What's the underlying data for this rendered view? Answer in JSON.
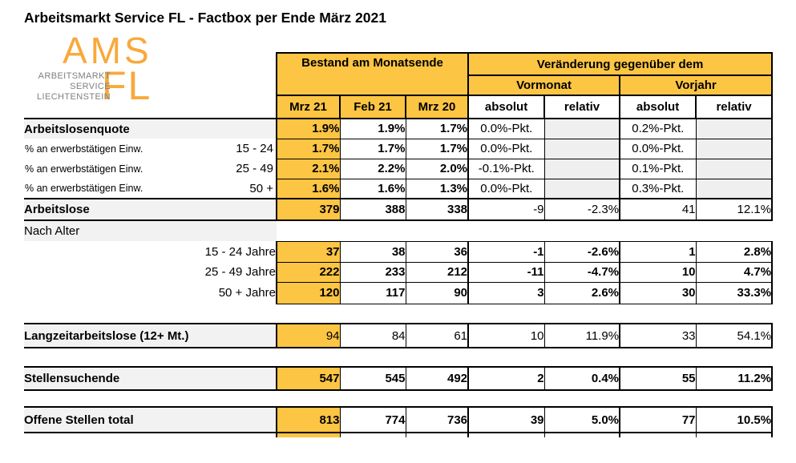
{
  "title": "Arbeitsmarkt Service FL - Factbox per Ende März 2021",
  "logo": {
    "acronym": "AMS",
    "suffix": "FL",
    "lines": [
      "ARBEITSMARKT",
      "SERVICE",
      "LIECHTENSTEIN"
    ]
  },
  "header": {
    "bestand": "Bestand am Monatsende",
    "veraenderung": "Veränderung gegenüber dem",
    "vormonat": "Vormonat",
    "vorjahr": "Vorjahr",
    "months": [
      "Mrz 21",
      "Feb 21",
      "Mrz 20"
    ],
    "vormonat_cols": [
      "absolut",
      "relativ"
    ],
    "vorjahr_cols": [
      "absolut",
      "relativ"
    ]
  },
  "colors": {
    "cell_orange": "#FDC544",
    "logo_orange": "#F8A93C",
    "label_gray": "#F2F2F2",
    "shade_gray": "#EFEFEF",
    "border_black": "#000000",
    "logo_text_gray": "#7F7F7F"
  },
  "rows": [
    {
      "id": "arbeitslosenquote",
      "kind": "quote",
      "label": "Arbeitslosenquote",
      "bestand": [
        "1.9%",
        "1.9%",
        "1.7%"
      ],
      "vormonat_absolut": "0.0%-Pkt.",
      "vorjahr_absolut": "0.2%-Pkt."
    },
    {
      "id": "quote-15-24",
      "kind": "quote",
      "label_left": "% an erwerbstätigen Einw.",
      "label_right": "15 - 24",
      "bestand": [
        "1.7%",
        "1.7%",
        "1.7%"
      ],
      "vormonat_absolut": "0.0%-Pkt.",
      "vorjahr_absolut": "0.0%-Pkt."
    },
    {
      "id": "quote-25-49",
      "kind": "quote",
      "label_left": "% an erwerbstätigen Einw.",
      "label_right": "25 - 49",
      "bestand": [
        "2.1%",
        "2.2%",
        "2.0%"
      ],
      "vormonat_absolut": "-0.1%-Pkt.",
      "vorjahr_absolut": "0.1%-Pkt."
    },
    {
      "id": "quote-50plus",
      "kind": "quote",
      "label_left": "% an erwerbstätigen Einw.",
      "label_right": "50 +",
      "bestand": [
        "1.6%",
        "1.6%",
        "1.3%"
      ],
      "vormonat_absolut": "0.0%-Pkt.",
      "vorjahr_absolut": "0.3%-Pkt."
    },
    {
      "id": "arbeitslose",
      "kind": "total",
      "label": "Arbeitslose",
      "bestand": [
        "379",
        "388",
        "338"
      ],
      "changes": [
        "-9",
        "-2.3%",
        "41",
        "12.1%"
      ],
      "bestand_bold": true,
      "changes_bold": false
    },
    {
      "id": "nach-alter",
      "kind": "subhead",
      "label": "Nach Alter"
    },
    {
      "id": "age-15-24",
      "kind": "age",
      "label": "15 - 24 Jahre",
      "bestand": [
        "37",
        "38",
        "36"
      ],
      "changes": [
        "-1",
        "-2.6%",
        "1",
        "2.8%"
      ],
      "bestand_bold": true,
      "changes_bold": true
    },
    {
      "id": "age-25-49",
      "kind": "age",
      "label": "25 - 49 Jahre",
      "bestand": [
        "222",
        "233",
        "212"
      ],
      "changes": [
        "-11",
        "-4.7%",
        "10",
        "4.7%"
      ],
      "bestand_bold": true,
      "changes_bold": true
    },
    {
      "id": "age-50plus",
      "kind": "age",
      "label": "50 + Jahre",
      "bestand": [
        "120",
        "117",
        "90"
      ],
      "changes": [
        "3",
        "2.6%",
        "30",
        "33.3%"
      ],
      "bestand_bold": true,
      "changes_bold": true
    },
    {
      "id": "langzeitarbeitslose",
      "kind": "total",
      "label": "Langzeitarbeitslose (12+ Mt.)",
      "bestand": [
        "94",
        "84",
        "61"
      ],
      "changes": [
        "10",
        "11.9%",
        "33",
        "54.1%"
      ],
      "bestand_bold": false,
      "changes_bold": false
    },
    {
      "id": "stellensuchende",
      "kind": "total",
      "label": "Stellensuchende",
      "bestand": [
        "547",
        "545",
        "492"
      ],
      "changes": [
        "2",
        "0.4%",
        "55",
        "11.2%"
      ],
      "bestand_bold": true,
      "changes_bold": true
    },
    {
      "id": "offene-stellen",
      "kind": "total",
      "label": "Offene Stellen total",
      "bestand": [
        "813",
        "774",
        "736"
      ],
      "changes": [
        "39",
        "5.0%",
        "77",
        "10.5%"
      ],
      "bestand_bold": true,
      "changes_bold": true
    }
  ]
}
